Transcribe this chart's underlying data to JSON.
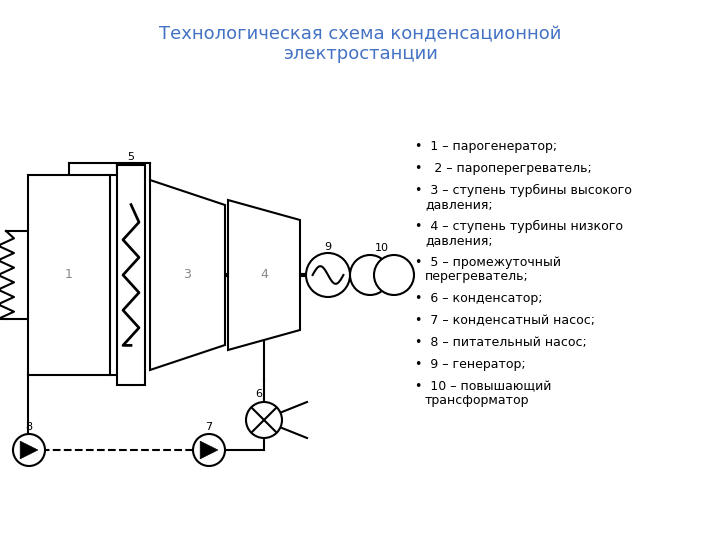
{
  "title_line1": "Технологическая схема конденсационной",
  "title_line2": "электростанции",
  "title_color": "#4472C4",
  "title_fontsize": 13,
  "legend_items": [
    "1 – парогенератор;",
    " 2 – пароперегреватель;",
    "3 – ступень турбины высокого давления;",
    "4 – ступень турбины низкого давления;",
    "5 – промежуточный перегреватель;",
    "6 – конденсатор;",
    "7 – конденсатный насос;",
    "8 – питательный насос;",
    "9 – генератор;",
    "10 – повышающий трансформатор"
  ],
  "bg_color": "#ffffff",
  "line_color": "#000000",
  "lw": 1.5
}
